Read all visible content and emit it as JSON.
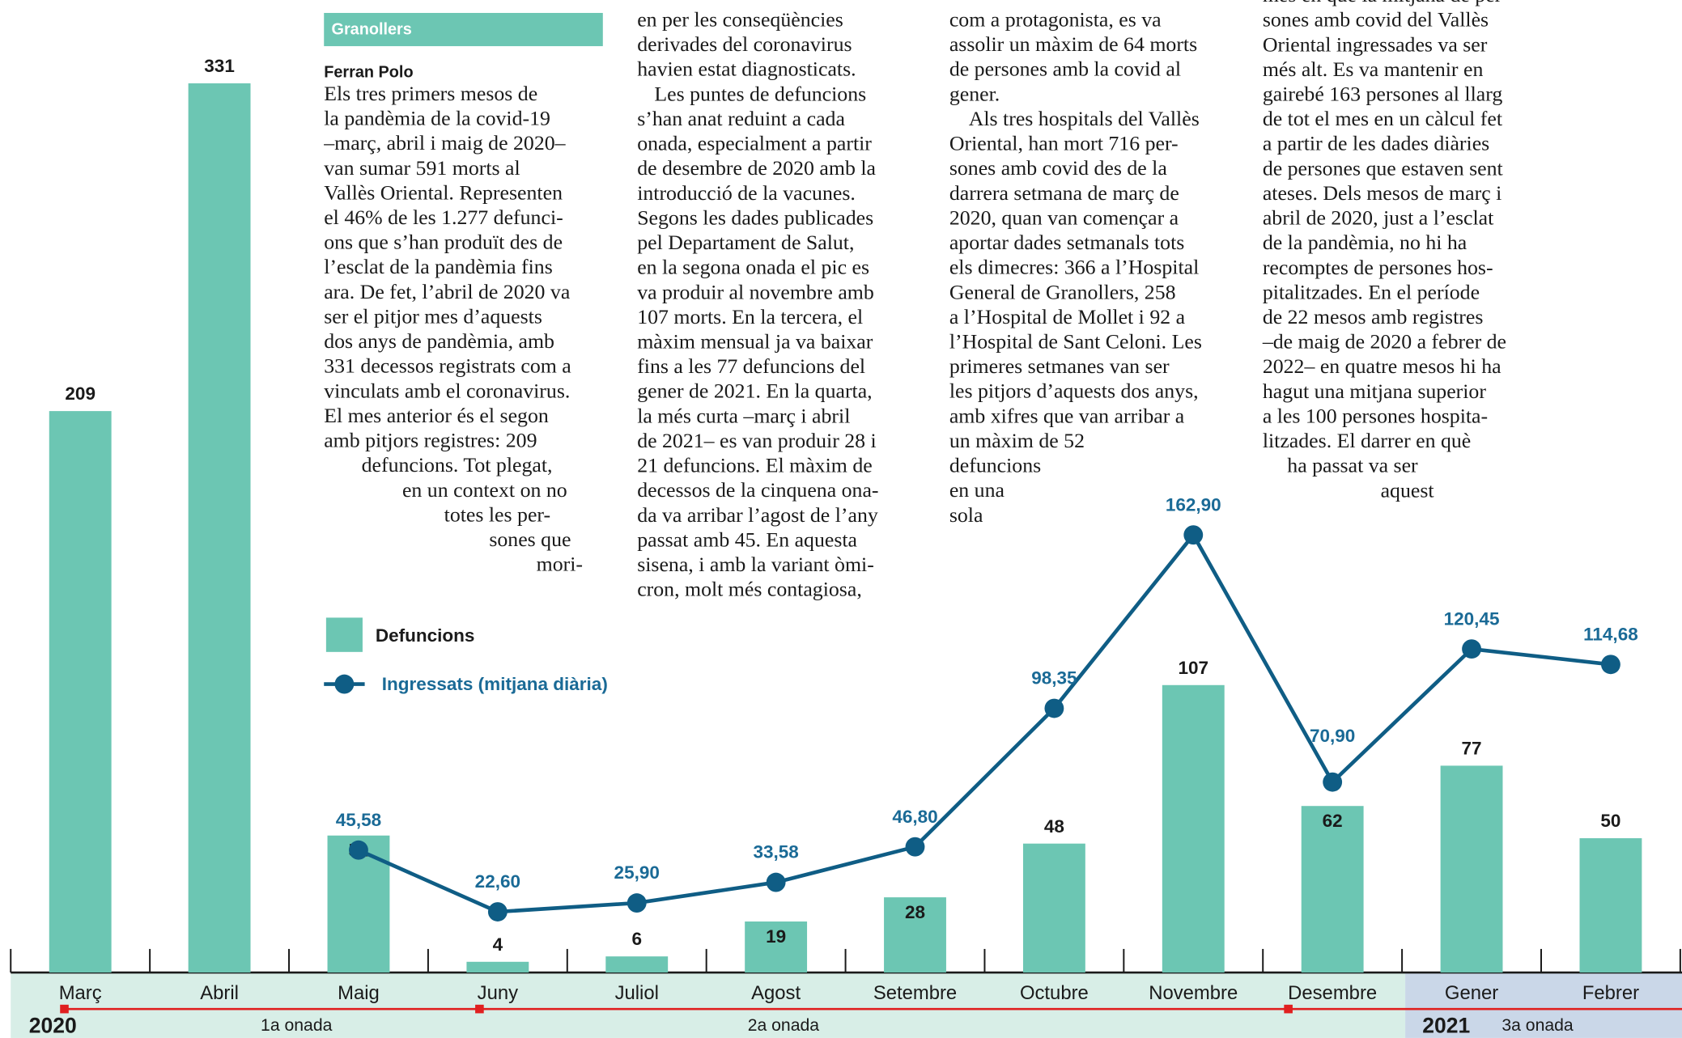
{
  "article": {
    "section": "Granollers",
    "author": "Ferran Polo",
    "columns": [
      [
        "Els tres primers mesos de",
        "la pandèmia de la covid-19",
        "–març, abril i maig de 2020–",
        "van sumar 591 morts al",
        "Vallès Oriental. Representen",
        "el 46% de les 1.277 defunci-",
        "ons que s’han produït des de",
        "l’esclat de la pandèmia fins",
        "ara. De fet, l’abril de 2020 va",
        "ser el pitjor mes d’aquests",
        "dos anys de pandèmia, amb",
        "331 decessos registrats com a",
        "vinculats amb el coronavirus.",
        "El mes anterior és el segon",
        "amb pitjors registres: 209",
        "defuncions. Tot plegat,",
        "en un context on no",
        "totes les per-",
        "sones que",
        "mori-"
      ],
      [
        "en per les conseqüències",
        "derivades del coronavirus",
        "havien estat diagnosticats.",
        "Les puntes de defuncions",
        "s’han anat reduint a cada",
        "onada, especialment a partir",
        "de desembre de 2020 amb la",
        "introducció de la vacunes.",
        "Segons les dades publicades",
        "pel Departament de Salut,",
        "en la segona onada el pic es",
        "va produir al novembre amb",
        "107 morts. En la tercera, el",
        "màxim mensual ja va baixar",
        "fins a les 77 defuncions del",
        "gener de 2021. En la quarta,",
        "la més curta –març i abril",
        "de 2021– es van produir 28 i",
        "21 defuncions. El màxim de",
        "decessos de la cinquena ona-",
        "da va arribar l’agost de l’any",
        "passat amb 45. En aquesta",
        "sisena, i amb la variant òmi-",
        "cron, molt més contagiosa,"
      ],
      [
        "com a protagonista, es va",
        "assolir un màxim de 64 morts",
        "de persones amb la covid al",
        "gener.",
        "Als tres hospitals del Vallès",
        "Oriental, han mort 716 per-",
        "sones amb covid des de la",
        "darrera setmana de març de",
        "2020, quan van començar a",
        "aportar dades setmanals tots",
        "els dimecres: 366 a l’Hospital",
        "General de Granollers, 258",
        "a l’Hospital de Mollet i 92 a",
        "l’Hospital de Sant Celoni. Les",
        "primeres setmanes van ser",
        "les pitjors d’aquests dos anys,",
        "amb xifres que van arribar a",
        "un màxim de 52",
        "defuncions",
        "en una",
        "sola"
      ],
      [
        "mes en què la mitjana de per-",
        "sones amb covid del Vallès",
        "Oriental ingressades va ser",
        "més alt. Es va mantenir en",
        "gairebé 163 persones al llarg",
        "de tot el mes en un càlcul fet",
        "a partir de les dades diàries",
        "de persones que estaven sent",
        "ateses. Dels mesos de març i",
        "abril de 2020, just a l’esclat",
        "de la pandèmia, no hi ha",
        "recomptes de persones hos-",
        "pitalitzades. En el període",
        "de 22 mesos amb registres",
        "–de maig de 2020 a febrer de",
        "2022– en quatre mesos hi ha",
        "hagut una mitjana superior",
        "a les 100 persones hospita-",
        "litzades. El darrer en què",
        "ha passat va ser",
        "aquest"
      ]
    ]
  },
  "chart_data": {
    "type": "bar",
    "categories": [
      "Març",
      "Abril",
      "Maig",
      "Juny",
      "Juliol",
      "Agost",
      "Setembre",
      "Octubre",
      "Novembre",
      "Desembre",
      "Gener",
      "Febrer"
    ],
    "series": [
      {
        "name": "Defuncions",
        "type": "bar",
        "color": "#6cc6b3",
        "values": [
          209,
          331,
          51,
          4,
          6,
          19,
          28,
          48,
          107,
          62,
          77,
          50
        ]
      },
      {
        "name": "Ingressats (mitjana diària)",
        "type": "line",
        "color": "#0f5d85",
        "values": [
          null,
          null,
          45.58,
          22.6,
          25.9,
          33.58,
          46.8,
          98.35,
          162.9,
          70.9,
          120.45,
          114.68
        ],
        "value_labels": [
          null,
          null,
          "45,58",
          "22,60",
          "25,90",
          "33,58",
          "46,80",
          "98,35",
          "162,90",
          "70,90",
          "120,45",
          "114,68"
        ]
      }
    ],
    "ylim": [
      0,
      362
    ],
    "annotations": {
      "years": [
        "2020",
        "2021"
      ],
      "waves": [
        "1a onada",
        "2a onada",
        "3a onada"
      ]
    }
  }
}
